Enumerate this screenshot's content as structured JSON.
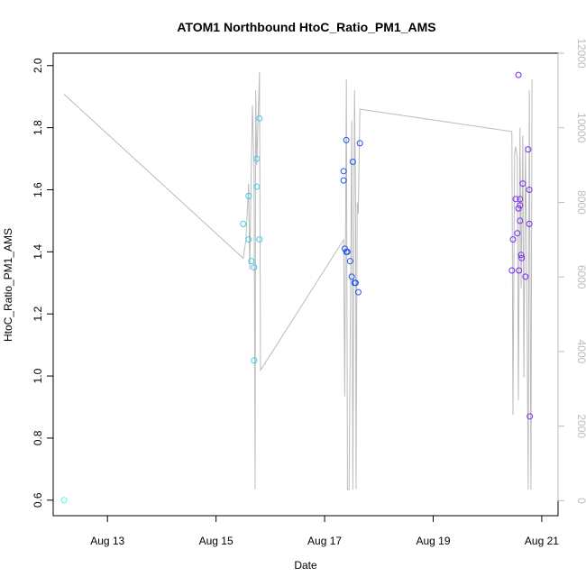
{
  "chart_data": {
    "type": "scatter",
    "title": "ATOM1 Northbound HtoC_Ratio_PM1_AMS",
    "xlabel": "Date",
    "ylabel": "HtoC_Ratio_PM1_AMS",
    "x_tick_labels": [
      "Aug 13",
      "Aug 15",
      "Aug 17",
      "Aug 19",
      "Aug 21"
    ],
    "x_tick_days": [
      13,
      15,
      17,
      19,
      21
    ],
    "y_ticks": [
      "0.6",
      "0.8",
      "1.0",
      "1.2",
      "1.4",
      "1.6",
      "1.8",
      "2.0"
    ],
    "y_tick_values": [
      0.6,
      0.8,
      1.0,
      1.2,
      1.4,
      1.6,
      1.8,
      2.0
    ],
    "y2_ticks": [
      "0",
      "2000",
      "4000",
      "6000",
      "8000",
      "10000",
      "12000"
    ],
    "y2_tick_values": [
      0,
      2000,
      4000,
      6000,
      8000,
      10000,
      12000
    ],
    "xlim_days": [
      12.0,
      21.3
    ],
    "ylim": [
      0.55,
      2.04
    ],
    "y2lim": [
      -400,
      12000
    ],
    "grid": false,
    "points": [
      {
        "x": 12.2,
        "y": 0.6,
        "color": "#5ff5e0"
      },
      {
        "x": 15.5,
        "y": 1.49,
        "color": "#3cc8ee"
      },
      {
        "x": 15.6,
        "y": 1.58,
        "color": "#3cc8ee"
      },
      {
        "x": 15.6,
        "y": 1.44,
        "color": "#3cc8ee"
      },
      {
        "x": 15.65,
        "y": 1.37,
        "color": "#3cc8ee"
      },
      {
        "x": 15.7,
        "y": 1.35,
        "color": "#3cc8ee"
      },
      {
        "x": 15.7,
        "y": 1.05,
        "color": "#3cc8ee"
      },
      {
        "x": 15.75,
        "y": 1.7,
        "color": "#3cc8ee"
      },
      {
        "x": 15.75,
        "y": 1.61,
        "color": "#3cc8ee"
      },
      {
        "x": 15.8,
        "y": 1.44,
        "color": "#3cc8ee"
      },
      {
        "x": 15.8,
        "y": 1.83,
        "color": "#3cc8ee"
      },
      {
        "x": 17.35,
        "y": 1.66,
        "color": "#2255ee"
      },
      {
        "x": 17.35,
        "y": 1.63,
        "color": "#2255ee"
      },
      {
        "x": 17.37,
        "y": 1.41,
        "color": "#2255ee"
      },
      {
        "x": 17.4,
        "y": 1.4,
        "color": "#2255ee"
      },
      {
        "x": 17.4,
        "y": 1.76,
        "color": "#2255ee"
      },
      {
        "x": 17.42,
        "y": 1.4,
        "color": "#2255ee"
      },
      {
        "x": 17.47,
        "y": 1.37,
        "color": "#2255ee"
      },
      {
        "x": 17.5,
        "y": 1.32,
        "color": "#2255ee"
      },
      {
        "x": 17.52,
        "y": 1.69,
        "color": "#2255ee"
      },
      {
        "x": 17.55,
        "y": 1.3,
        "color": "#2255ee"
      },
      {
        "x": 17.57,
        "y": 1.3,
        "color": "#2255ee"
      },
      {
        "x": 17.62,
        "y": 1.27,
        "color": "#2255ee"
      },
      {
        "x": 17.65,
        "y": 1.75,
        "color": "#2255ee"
      },
      {
        "x": 20.45,
        "y": 1.34,
        "color": "#7a2aee"
      },
      {
        "x": 20.47,
        "y": 1.44,
        "color": "#7a2aee"
      },
      {
        "x": 20.52,
        "y": 1.57,
        "color": "#7a2aee"
      },
      {
        "x": 20.55,
        "y": 1.46,
        "color": "#7a2aee"
      },
      {
        "x": 20.57,
        "y": 1.54,
        "color": "#7a2aee"
      },
      {
        "x": 20.57,
        "y": 1.97,
        "color": "#7a2aee"
      },
      {
        "x": 20.58,
        "y": 1.34,
        "color": "#7a2aee"
      },
      {
        "x": 20.6,
        "y": 1.55,
        "color": "#7a2aee"
      },
      {
        "x": 20.6,
        "y": 1.57,
        "color": "#7a2aee"
      },
      {
        "x": 20.6,
        "y": 1.5,
        "color": "#7a2aee"
      },
      {
        "x": 20.62,
        "y": 1.39,
        "color": "#7a2aee"
      },
      {
        "x": 20.63,
        "y": 1.38,
        "color": "#7a2aee"
      },
      {
        "x": 20.65,
        "y": 1.62,
        "color": "#7a2aee"
      },
      {
        "x": 20.7,
        "y": 1.32,
        "color": "#7a2aee"
      },
      {
        "x": 20.75,
        "y": 1.73,
        "color": "#7a2aee"
      },
      {
        "x": 20.77,
        "y": 1.6,
        "color": "#7a2aee"
      },
      {
        "x": 20.77,
        "y": 1.49,
        "color": "#7a2aee"
      },
      {
        "x": 20.78,
        "y": 0.87,
        "color": "#7a2aee"
      }
    ],
    "line": {
      "color": "#bbbbbb",
      "x": [
        12.2,
        15.5,
        15.55,
        15.6,
        15.62,
        15.65,
        15.67,
        15.7,
        15.72,
        15.73,
        15.75,
        15.8,
        15.82,
        17.35,
        17.37,
        17.4,
        17.42,
        17.45,
        17.5,
        17.52,
        17.55,
        17.57,
        17.58,
        17.6,
        17.62,
        17.65,
        20.45,
        20.47,
        20.5,
        20.52,
        20.55,
        20.57,
        20.6,
        20.62,
        20.65,
        20.67,
        20.7,
        20.72,
        20.75,
        20.77,
        20.8,
        20.82
      ],
      "y": [
        10900,
        6500,
        7000,
        8500,
        6200,
        9000,
        10600,
        8900,
        300,
        11000,
        9000,
        11500,
        3500,
        7000,
        2800,
        11300,
        300,
        300,
        10200,
        300,
        11000,
        8200,
        300,
        8000,
        7700,
        10500,
        9900,
        2300,
        9300,
        9500,
        9200,
        2700,
        10000,
        5700,
        9800,
        3300,
        9500,
        6700,
        300,
        11000,
        300,
        11300
      ]
    }
  }
}
